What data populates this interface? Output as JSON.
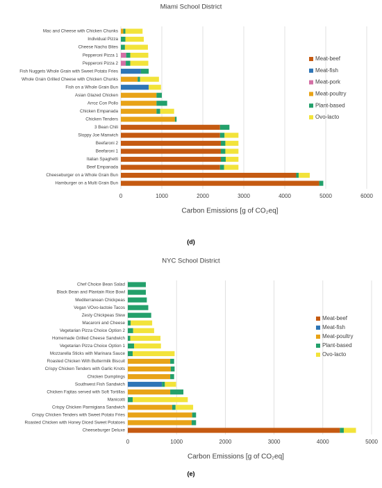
{
  "chart_data": [
    {
      "type": "bar",
      "orientation": "horizontal",
      "stacked": true,
      "title": "Miami School District",
      "categories": [
        "Mac and Cheese with Chicken Chunks",
        "Individual Pizza",
        "Cheese Nacho Bites",
        "Pepperoni Pizza 1",
        "Pepperoni Pizza 2",
        "Fish Nuggets Whole Grain with Sweet Potato Fries",
        "Whole Grain Grilled Cheese with Chicken Chunks",
        "Fish on a Whole Grain Bun",
        "Asian Glazed Chicken",
        "Arroz Con Pollo",
        "Chicken Empanada",
        "Chicken Tenders",
        "3 Bean Chili",
        "Sloppy Joe Manwich",
        "Beefaroni 2",
        "Beefaroni 1",
        "Italian Spaghetti",
        "Beef Empanada",
        "Cheeseburger on a Whole Grain Bun",
        "Hamburger on a Multi Grain Bun"
      ],
      "series": [
        {
          "name": "Meat-beef",
          "color": "#c55a11",
          "values": [
            0,
            0,
            0,
            0,
            0,
            0,
            0,
            0,
            0,
            0,
            0,
            0,
            2420,
            2420,
            2440,
            2440,
            2440,
            2420,
            4280,
            4840
          ]
        },
        {
          "name": "Meat-fish",
          "color": "#2e75b6",
          "values": [
            0,
            0,
            0,
            0,
            0,
            490,
            0,
            680,
            0,
            0,
            0,
            0,
            0,
            0,
            0,
            0,
            0,
            0,
            0,
            0
          ]
        },
        {
          "name": "Meat-pork",
          "color": "#d36fa5",
          "values": [
            0,
            0,
            0,
            130,
            120,
            0,
            0,
            0,
            0,
            0,
            0,
            0,
            0,
            0,
            0,
            0,
            0,
            0,
            0,
            0
          ]
        },
        {
          "name": "Meat-poultry",
          "color": "#e8a317",
          "values": [
            60,
            0,
            0,
            0,
            0,
            0,
            410,
            0,
            870,
            870,
            870,
            1320,
            0,
            0,
            0,
            0,
            0,
            0,
            0,
            0
          ]
        },
        {
          "name": "Plant-based",
          "color": "#23a06b",
          "values": [
            50,
            110,
            100,
            100,
            110,
            190,
            60,
            0,
            130,
            260,
            90,
            40,
            230,
            110,
            110,
            110,
            120,
            100,
            60,
            100
          ]
        },
        {
          "name": "Ovo-lacto",
          "color": "#f2e33a",
          "values": [
            420,
            450,
            560,
            440,
            440,
            0,
            460,
            300,
            0,
            0,
            340,
            0,
            0,
            340,
            320,
            320,
            310,
            350,
            270,
            0
          ]
        }
      ],
      "xlim": [
        0,
        6000
      ],
      "xticks": [
        0,
        1000,
        2000,
        3000,
        4000,
        5000,
        6000
      ],
      "grid": true,
      "legend": "right",
      "xlabel": "Carbon Emissions [g of CO₂eq]",
      "panel_label": "(d)"
    },
    {
      "type": "bar",
      "orientation": "horizontal",
      "stacked": true,
      "title": "NYC School District",
      "categories": [
        "Chef Choice Bean Salad",
        "Black Bean and Plantain Rice Bowl",
        "Mediterranean Chickpeas",
        "Vegan VOvo-lactoie Tacos",
        "Zesty Chickpeas Stew",
        "Macaroni and Cheese",
        "Vegetarian Pizza Choice Option 2",
        "Homemade Grilled Cheese Sandwich",
        "Vegetarian Pizza Choice Option 1",
        "Mozzarella Sticks with Marinara Sauce",
        "Roasted Chicken With Buttermilk Biscuit",
        "Crispy Chicken Tenders with Garlic Knots",
        "Chicken Dumplings",
        "Southwest Fish Sandwich",
        "Chicken Fajitas served with Soft Tortillas",
        "Manicotti",
        "Crispy Chicken Parmigiana Sandwich",
        "Crispy Chicken Tenders with Sweet Potato Fries",
        "Roasted Chicken with Honey Diced Sweet Potatoes",
        "Cheeseburger Deluxe"
      ],
      "series": [
        {
          "name": "Meat-beef",
          "color": "#c55a11",
          "values": [
            0,
            0,
            0,
            0,
            0,
            0,
            0,
            0,
            0,
            0,
            0,
            0,
            0,
            0,
            0,
            0,
            0,
            0,
            0,
            4350
          ]
        },
        {
          "name": "Meat-fish",
          "color": "#2e75b6",
          "values": [
            0,
            0,
            0,
            0,
            0,
            0,
            0,
            0,
            0,
            0,
            0,
            0,
            0,
            700,
            0,
            0,
            0,
            0,
            0,
            0
          ]
        },
        {
          "name": "Meat-poultry",
          "color": "#e8a317",
          "values": [
            0,
            0,
            0,
            0,
            0,
            0,
            0,
            0,
            0,
            0,
            870,
            880,
            870,
            0,
            870,
            0,
            910,
            1320,
            1310,
            0
          ]
        },
        {
          "name": "Plant-based",
          "color": "#23a06b",
          "values": [
            370,
            370,
            390,
            420,
            480,
            60,
            110,
            50,
            130,
            100,
            80,
            80,
            80,
            60,
            270,
            100,
            70,
            80,
            90,
            80
          ]
        },
        {
          "name": "Ovo-lacto",
          "color": "#f2e33a",
          "values": [
            0,
            0,
            0,
            0,
            0,
            440,
            430,
            620,
            550,
            860,
            0,
            0,
            0,
            230,
            0,
            1130,
            360,
            0,
            0,
            250
          ]
        }
      ],
      "xlim": [
        0,
        5000
      ],
      "xticks": [
        0,
        1000,
        2000,
        3000,
        4000,
        5000
      ],
      "grid": true,
      "legend": "right",
      "xlabel": "Carbon Emissions [g of CO₂eq]",
      "panel_label": "(e)"
    }
  ]
}
